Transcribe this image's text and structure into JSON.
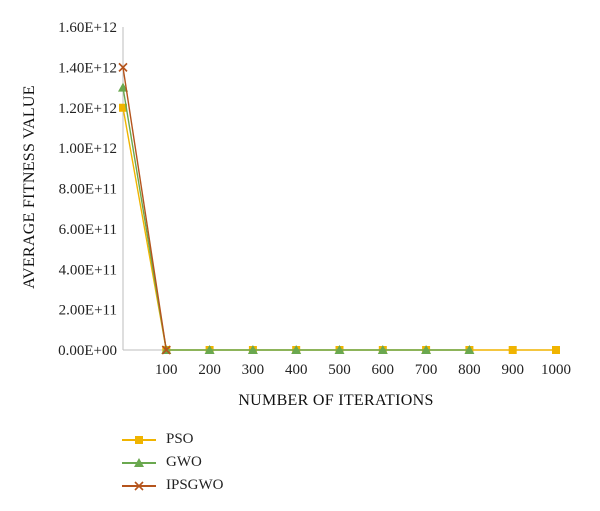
{
  "chart_data": {
    "type": "line",
    "xlabel": "NUMBER OF ITERATIONS",
    "ylabel": "AVERAGE FITNESS VALUE",
    "x_tick_labels": [
      "100",
      "200",
      "300",
      "400",
      "500",
      "600",
      "700",
      "800",
      "900",
      "1000"
    ],
    "y_tick_labels": [
      "0.00E+00",
      "2.00E+11",
      "4.00E+11",
      "6.00E+11",
      "8.00E+11",
      "1.00E+12",
      "1.20E+12",
      "1.40E+12",
      "1.60E+12"
    ],
    "ylim": [
      0,
      1600000000000
    ],
    "grid": false,
    "legend_position": "bottom-left",
    "series": [
      {
        "name": "PSO",
        "color": "#f0b400",
        "marker": "square",
        "x": [
          0,
          100,
          200,
          300,
          400,
          500,
          600,
          700,
          800,
          900,
          1000
        ],
        "values": [
          1200000000000,
          0,
          0,
          0,
          0,
          0,
          0,
          0,
          0,
          0,
          0
        ]
      },
      {
        "name": "GWO",
        "color": "#6aa84f",
        "marker": "triangle",
        "x": [
          0,
          100,
          200,
          300,
          400,
          500,
          600,
          700,
          800
        ],
        "values": [
          1300000000000,
          0,
          0,
          0,
          0,
          0,
          0,
          0,
          0
        ]
      },
      {
        "name": "IPSGWO",
        "color": "#b5541c",
        "marker": "x",
        "x": [
          0,
          100
        ],
        "values": [
          1400000000000,
          0
        ]
      }
    ]
  }
}
